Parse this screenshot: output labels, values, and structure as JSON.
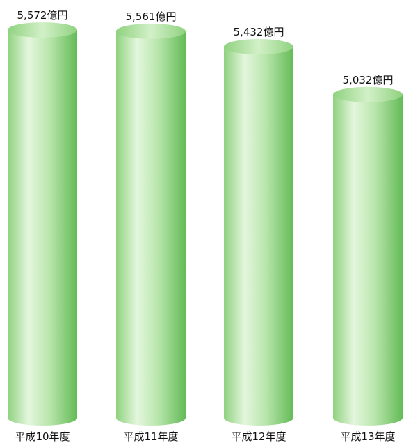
{
  "chart_data": {
    "type": "bar",
    "categories": [
      "平成10年度",
      "平成11年度",
      "平成12年度",
      "平成13年度"
    ],
    "values": [
      5572,
      5561,
      5432,
      5032
    ],
    "value_labels": [
      "5,572億円",
      "5,561億円",
      "5,432億円",
      "5,032億円"
    ],
    "unit": "億円",
    "title": "",
    "xlabel": "",
    "ylabel": "",
    "ylim": [
      0,
      5572
    ],
    "grid": false,
    "legend": "none",
    "bar_style": "3d-cylinder",
    "colors": {
      "bar_light": "#f2fbef",
      "bar_mid": "#9fd990",
      "bar_dark": "#63bb57",
      "bar_top": "#b8e6a8",
      "text": "#111111"
    }
  }
}
